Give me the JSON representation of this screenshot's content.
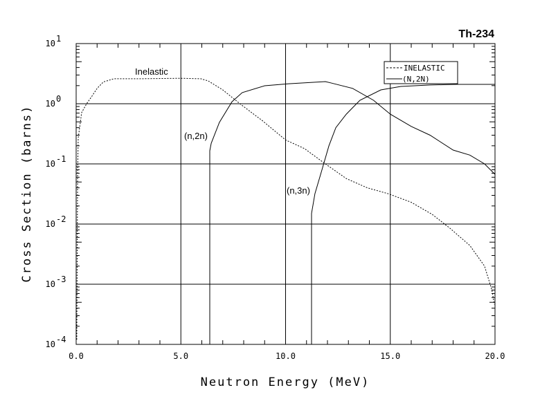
{
  "chart_data": {
    "type": "line",
    "title": "Th-234",
    "xlabel": "Neutron Energy (MeV)",
    "ylabel": "Cross Section (barns)",
    "xlim": [
      0,
      20
    ],
    "ylim": [
      0.0001,
      10
    ],
    "yscale": "log",
    "grid": true,
    "x_ticks": [
      {
        "value": 0,
        "label": "0.0"
      },
      {
        "value": 5,
        "label": "5.0"
      },
      {
        "value": 10,
        "label": "10.0"
      },
      {
        "value": 15,
        "label": "15.0"
      },
      {
        "value": 20,
        "label": "20.0"
      }
    ],
    "y_ticks": [
      {
        "exp": 1,
        "base": "10",
        "sup": "1"
      },
      {
        "exp": 0,
        "base": "10",
        "sup": "0"
      },
      {
        "exp": -1,
        "base": "10",
        "sup": "-1"
      },
      {
        "exp": -2,
        "base": "10",
        "sup": "-2"
      },
      {
        "exp": -3,
        "base": "10",
        "sup": "-3"
      },
      {
        "exp": -4,
        "base": "10",
        "sup": "-4"
      }
    ],
    "legend": {
      "placement": "top-right",
      "entries": [
        "INELASTIC",
        "(N,2N)"
      ]
    },
    "annotations": [
      {
        "text": "Inelastic",
        "x": 3.6,
        "y": 3.5
      },
      {
        "text": "(n,2n)",
        "x": 5.7,
        "y": 0.33
      },
      {
        "text": "(n,3n)",
        "x": 10.6,
        "y": 0.038
      }
    ],
    "series": [
      {
        "name": "Inelastic",
        "style": "dashed",
        "x": [
          0.03,
          0.07,
          0.1,
          0.26,
          0.5,
          0.73,
          1.0,
          1.3,
          1.8,
          3.0,
          5.0,
          5.95,
          6.3,
          7.0,
          7.9,
          8.9,
          10.0,
          10.9,
          11.9,
          12.9,
          13.9,
          14.9,
          16.0,
          17.0,
          17.85,
          18.8,
          19.5,
          19.85,
          19.97
        ],
        "y": [
          0.00012,
          0.07,
          0.27,
          0.71,
          1.0,
          1.3,
          1.8,
          2.3,
          2.6,
          2.6,
          2.65,
          2.6,
          2.4,
          1.7,
          0.95,
          0.52,
          0.25,
          0.18,
          0.1,
          0.057,
          0.04,
          0.032,
          0.023,
          0.0145,
          0.0085,
          0.0044,
          0.002,
          0.0008,
          0.00046
        ]
      },
      {
        "name": "(n,2n)",
        "style": "solid",
        "x": [
          6.38,
          6.38,
          6.45,
          6.84,
          7.44,
          7.93,
          9.0,
          10.15,
          11.9,
          12.2,
          13.2,
          14.2,
          15.0,
          16.0,
          16.9,
          18.0,
          18.8,
          19.5,
          20.0
        ],
        "y": [
          0.0001,
          0.165,
          0.22,
          0.49,
          1.08,
          1.53,
          1.99,
          2.15,
          2.33,
          2.2,
          1.8,
          1.14,
          0.67,
          0.42,
          0.3,
          0.17,
          0.14,
          0.1,
          0.067
        ]
      },
      {
        "name": "(n,3n)",
        "style": "solid",
        "x": [
          11.24,
          11.24,
          11.4,
          11.74,
          12.07,
          12.4,
          12.9,
          13.55,
          14.55,
          15.5,
          16.9,
          18.2,
          20.0
        ],
        "y": [
          0.0001,
          0.015,
          0.032,
          0.08,
          0.2,
          0.4,
          0.67,
          1.14,
          1.7,
          1.94,
          2.05,
          2.1,
          2.1
        ]
      }
    ]
  }
}
